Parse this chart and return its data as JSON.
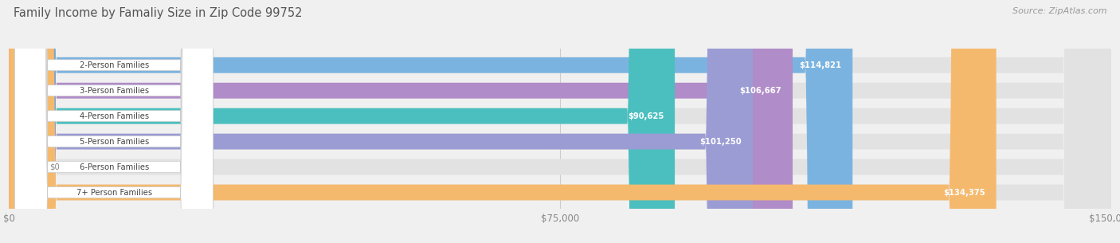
{
  "title": "Family Income by Famaliy Size in Zip Code 99752",
  "source": "Source: ZipAtlas.com",
  "categories": [
    "2-Person Families",
    "3-Person Families",
    "4-Person Families",
    "5-Person Families",
    "6-Person Families",
    "7+ Person Families"
  ],
  "values": [
    114821,
    106667,
    90625,
    101250,
    0,
    134375
  ],
  "bar_colors": [
    "#7bb3e0",
    "#b08cc8",
    "#4bbfbf",
    "#9b9cd4",
    "#f4a0b8",
    "#f5b96e"
  ],
  "value_labels": [
    "$114,821",
    "$106,667",
    "$90,625",
    "$101,250",
    "$0",
    "$134,375"
  ],
  "xlim": [
    0,
    150000
  ],
  "xticks": [
    0,
    75000,
    150000
  ],
  "xtick_labels": [
    "$0",
    "$75,000",
    "$150,000"
  ],
  "bg_color": "#f0f0f0",
  "title_color": "#555555",
  "source_color": "#999999",
  "label_text_color": "#444444",
  "value_text_color": "#ffffff",
  "bar_height": 0.62,
  "figsize": [
    14.06,
    3.05
  ],
  "dpi": 100
}
